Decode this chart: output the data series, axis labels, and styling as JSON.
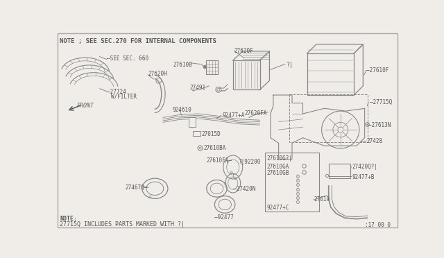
{
  "bg_color": "#f0ede8",
  "line_color": "#888888",
  "text_color": "#555555",
  "title": "NOTE ; SEE SEC.270 FOR INTERNAL COMPONENTS",
  "note1": "NOTE:",
  "note2": "27715Q INCLUDES PARTS MARKED WITH ?|",
  "ref": ":17 00 0"
}
